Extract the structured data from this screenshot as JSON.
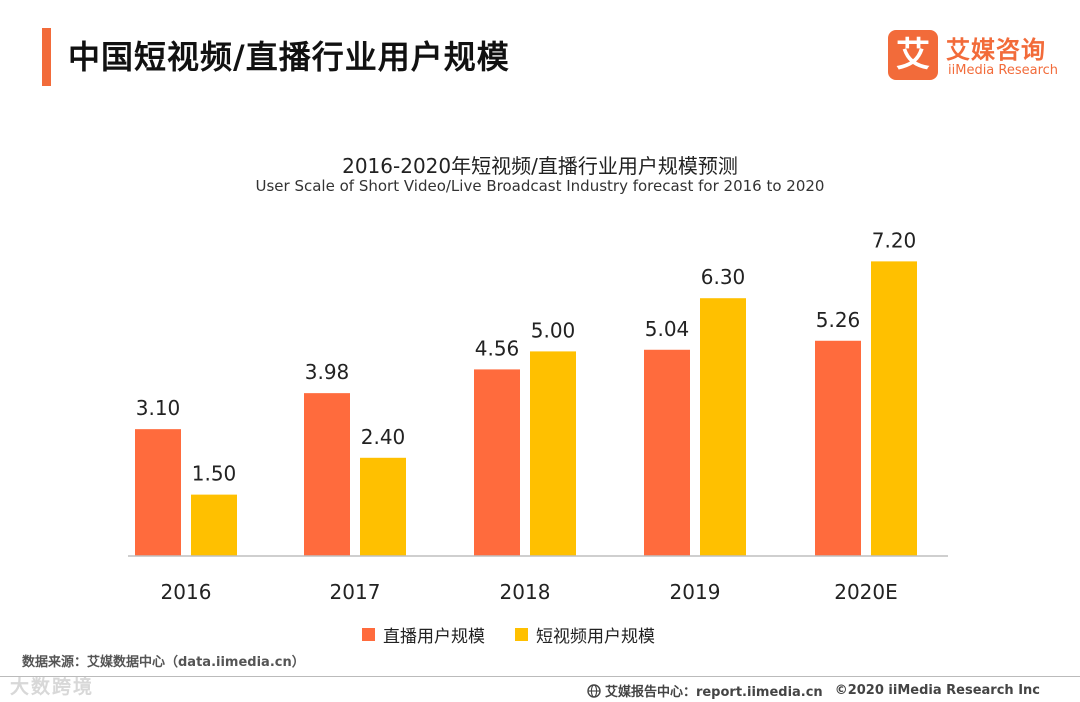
{
  "header": {
    "title": "中国短视频/直播行业用户规模",
    "brand": {
      "mark": "艾",
      "name_cn": "艾媒咨询",
      "name_en": "iiMedia Research"
    }
  },
  "colors": {
    "accent": "#f26b3a",
    "live": "#ff6b3d",
    "short_video": "#ffc000",
    "axis": "#bfbfbf"
  },
  "chart_data": {
    "type": "bar",
    "title": "2016-2020年短视频/直播行业用户规模预测",
    "subtitle": "User Scale of Short Video/Live Broadcast Industry  forecast for 2016 to 2020",
    "categories": [
      "2016",
      "2017",
      "2018",
      "2019",
      "2020E"
    ],
    "series": [
      {
        "name": "直播用户规模",
        "values": [
          3.1,
          3.98,
          4.56,
          5.04,
          5.26
        ],
        "labels": [
          "3.10",
          "3.98",
          "4.56",
          "5.04",
          "5.26"
        ]
      },
      {
        "name": "短视频用户规模",
        "values": [
          1.5,
          2.4,
          5.0,
          6.3,
          7.2
        ],
        "labels": [
          "1.50",
          "2.40",
          "5.00",
          "6.30",
          "7.20"
        ]
      }
    ],
    "xlabel": "",
    "ylabel": "",
    "ylim": [
      0,
      8.7
    ],
    "grid": false,
    "legend": "bottom-center"
  },
  "footer": {
    "source": "数据来源：艾媒数据中心（data.iimedia.cn）",
    "report": "艾媒报告中心：report.iimedia.cn",
    "copyright": "©2020  iiMedia Research  Inc",
    "watermark": "大数跨境"
  }
}
